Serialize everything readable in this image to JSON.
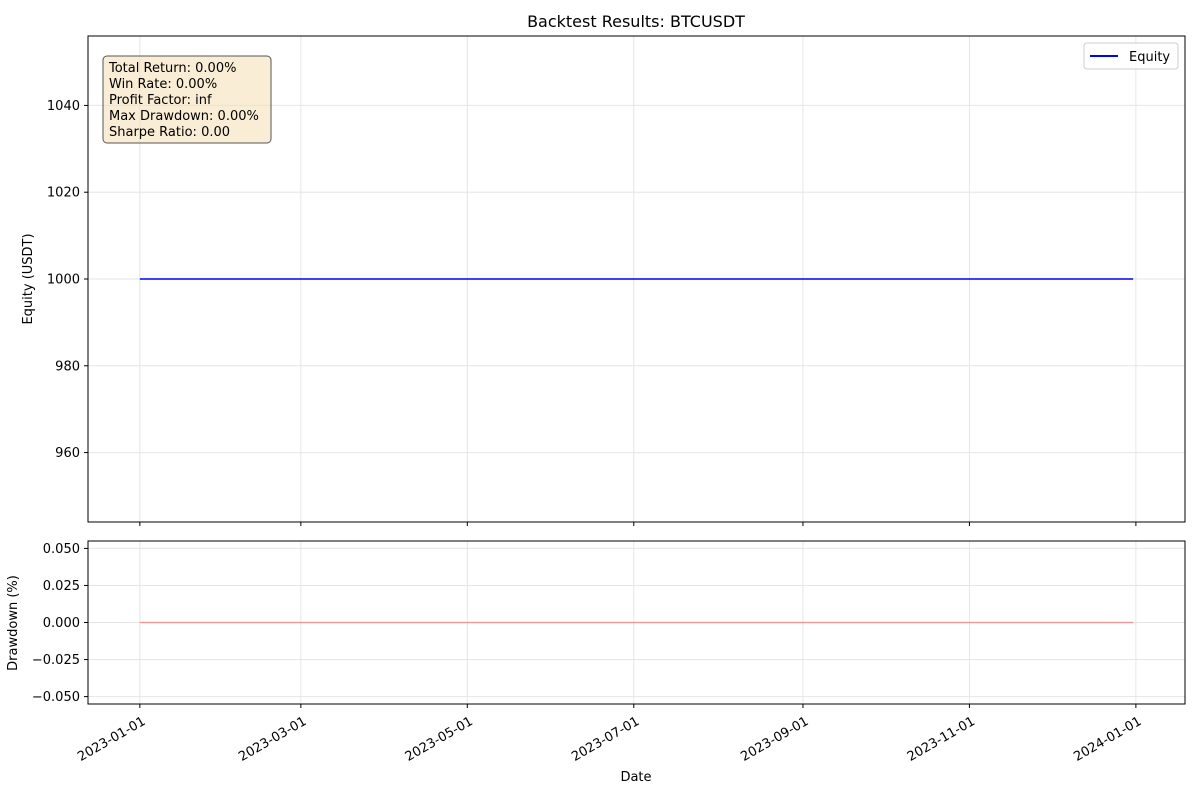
{
  "title": "Backtest Results: BTCUSDT",
  "chart_data": [
    {
      "type": "line",
      "panel": "equity",
      "title": "Backtest Results: BTCUSDT",
      "xlabel": "",
      "ylabel": "Equity (USDT)",
      "xlim": [
        "2022-12-13",
        "2024-01-19"
      ],
      "ylim": [
        944,
        1056
      ],
      "yticks": [
        960,
        980,
        1000,
        1020,
        1040
      ],
      "grid": true,
      "legend": {
        "position": "top-right",
        "entries": [
          "Equity"
        ]
      },
      "series": [
        {
          "name": "Equity",
          "color": "#0000ff",
          "x": [
            "2023-01-01",
            "2023-12-31"
          ],
          "y": [
            1000,
            1000
          ]
        }
      ],
      "stats_box": [
        "Total Return: 0.00%",
        "Win Rate: 0.00%",
        "Profit Factor: inf",
        "Max Drawdown: 0.00%",
        "Sharpe Ratio: 0.00"
      ]
    },
    {
      "type": "area",
      "panel": "drawdown",
      "xlabel": "Date",
      "ylabel": "Drawdown (%)",
      "xlim": [
        "2022-12-13",
        "2024-01-19"
      ],
      "ylim": [
        -0.055,
        0.055
      ],
      "yticks": [
        -0.05,
        -0.025,
        0.0,
        0.025,
        0.05
      ],
      "ytick_labels": [
        "−0.050",
        "−0.025",
        "0.000",
        "0.025",
        "0.050"
      ],
      "xticks": [
        "2023-01-01",
        "2023-03-01",
        "2023-05-01",
        "2023-07-01",
        "2023-09-01",
        "2023-11-01",
        "2024-01-01"
      ],
      "grid": true,
      "series": [
        {
          "color": "#ff0000",
          "x": [
            "2023-01-01",
            "2023-12-31"
          ],
          "y": [
            0,
            0
          ]
        }
      ]
    }
  ],
  "colors": {
    "equity_line": "#0000ff",
    "drawdown": "#ff0000",
    "stats_box_fill": "#f5deb3"
  }
}
